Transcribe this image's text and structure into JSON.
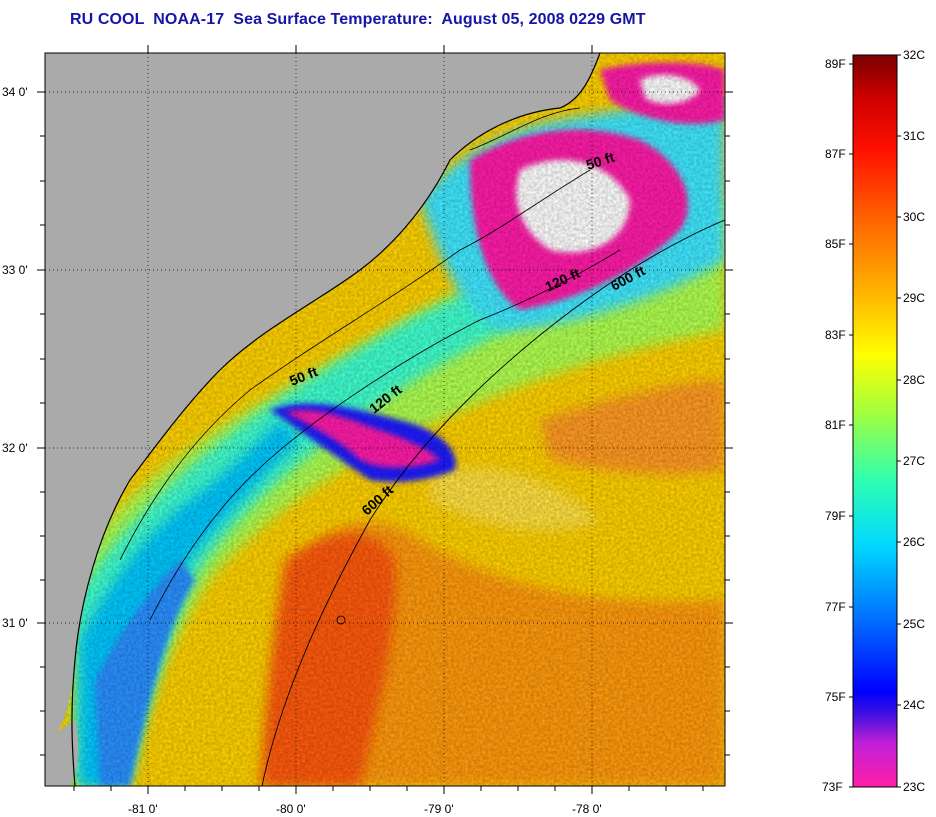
{
  "title": "RU COOL  NOAA-17  Sea Surface Temperature:  August 05, 2008 0229 GMT",
  "map": {
    "lat_labels": [
      "34 0'",
      "33 0'",
      "32 0'",
      "31 0'"
    ],
    "lon_labels": [
      "-81 0'",
      "-80 0'",
      "-79 0'",
      "-78 0'"
    ]
  },
  "contours": {
    "north": [
      "50 ft",
      "120 ft",
      "600 ft"
    ],
    "south": [
      "50 ft",
      "120 ft",
      "600 ft"
    ]
  },
  "colorbar": {
    "fahrenheit_labels": [
      "89F",
      "87F",
      "85F",
      "83F",
      "81F",
      "79F",
      "77F",
      "75F",
      "73F"
    ],
    "celsius_labels": [
      "32C",
      "31C",
      "30C",
      "29C",
      "28C",
      "27C",
      "26C",
      "25C",
      "24C",
      "23C"
    ]
  },
  "colors": {
    "title": "#1515a8",
    "land": "#aaaaaa",
    "cloud": "#ffffff",
    "scale_min": "#ff1fa8",
    "scale_max": "#7a0000"
  }
}
